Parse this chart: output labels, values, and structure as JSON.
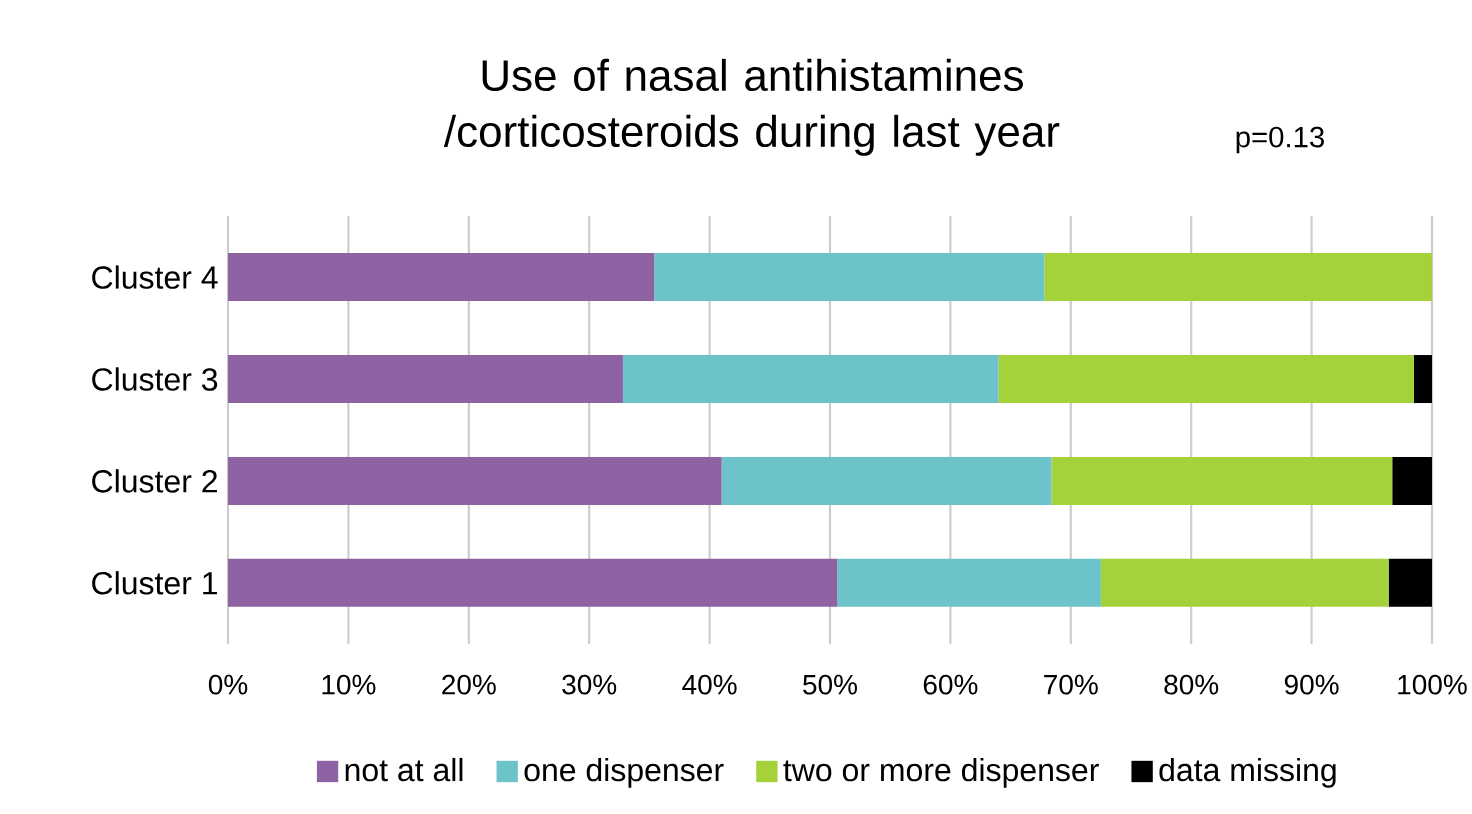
{
  "chart_data": {
    "type": "bar",
    "orientation": "horizontal",
    "stacked": true,
    "title": "Use of nasal antihistamines /corticosteroids during last year",
    "annotations": [
      "p=0.13"
    ],
    "categories": [
      "Cluster 4",
      "Cluster 3",
      "Cluster 2",
      "Cluster 1"
    ],
    "series": [
      {
        "name": "not at all",
        "color": "#8f62a4",
        "values": [
          35.4,
          32.8,
          41.0,
          50.6
        ]
      },
      {
        "name": "one dispenser",
        "color": "#6cc3c9",
        "values": [
          32.4,
          31.2,
          27.4,
          21.9
        ]
      },
      {
        "name": "two or more dispenser",
        "color": "#a5d13a",
        "values": [
          32.2,
          34.5,
          28.3,
          23.9
        ]
      },
      {
        "name": "data missing",
        "color": "#000000",
        "values": [
          0,
          1.5,
          3.3,
          3.6
        ]
      }
    ],
    "xlim": [
      0,
      100
    ],
    "xticks": [
      {
        "value": 0,
        "label": "0%"
      },
      {
        "value": 10,
        "label": "10%"
      },
      {
        "value": 20,
        "label": "20%"
      },
      {
        "value": 30,
        "label": "30%"
      },
      {
        "value": 40,
        "label": "40%"
      },
      {
        "value": 50,
        "label": "50%"
      },
      {
        "value": 60,
        "label": "60%"
      },
      {
        "value": 70,
        "label": "70%"
      },
      {
        "value": 80,
        "label": "80%"
      },
      {
        "value": 90,
        "label": "90%"
      },
      {
        "value": 100,
        "label": "100%"
      }
    ],
    "grid": "x",
    "legend": "bottom"
  }
}
